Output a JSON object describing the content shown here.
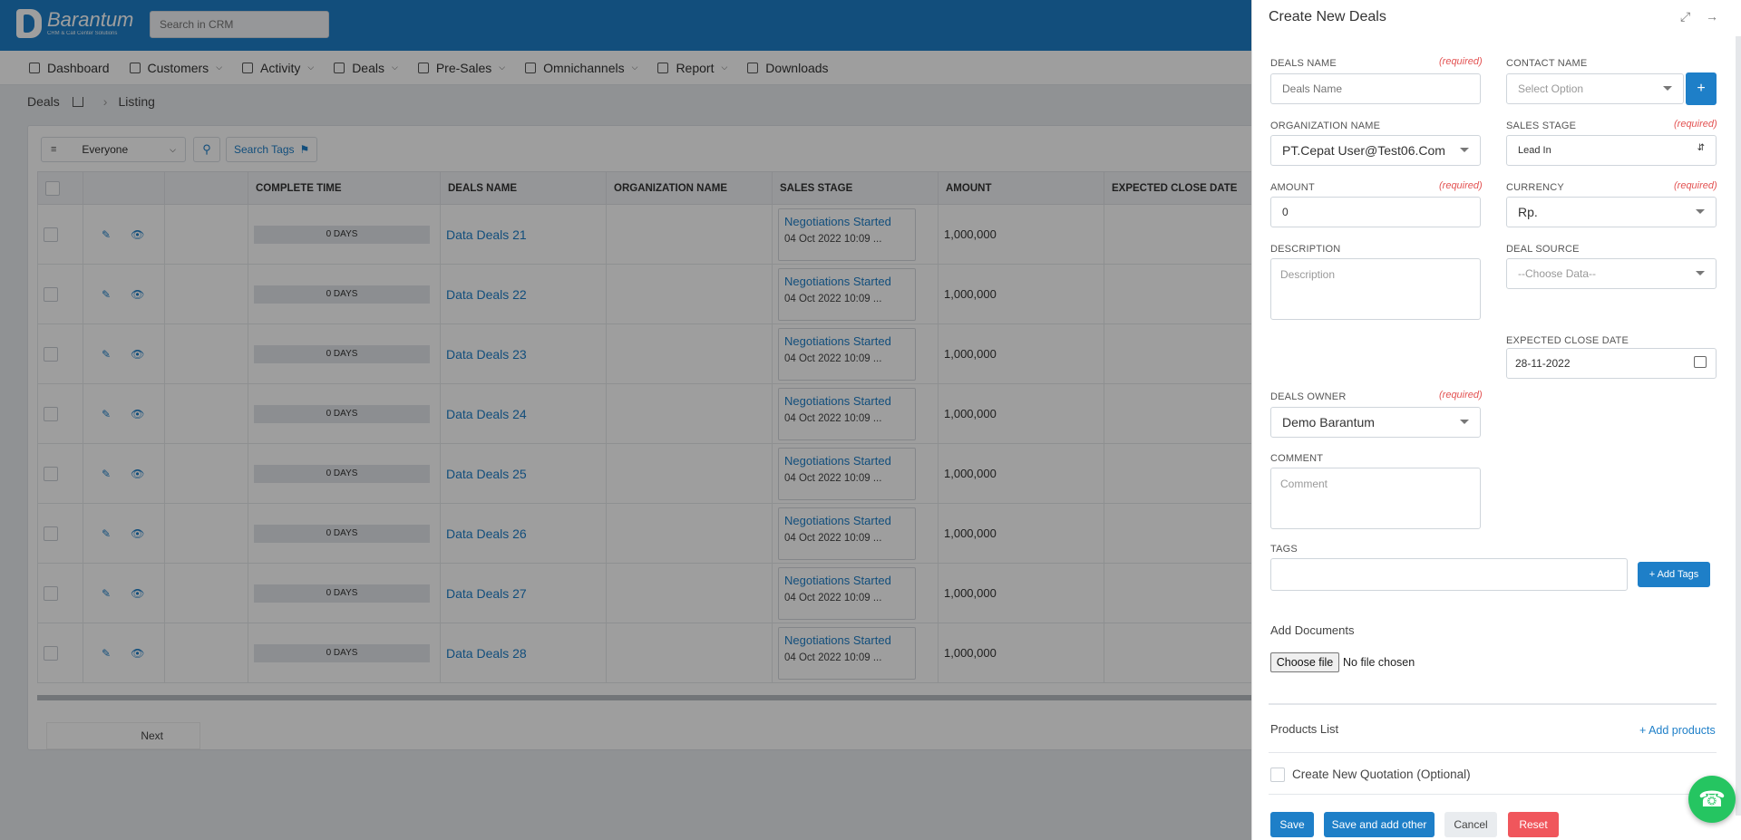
{
  "app": {
    "logo_title": "Barantum",
    "logo_sub": "CRM & Call Center Solutions",
    "search_placeholder": "Search in CRM"
  },
  "nav": [
    {
      "label": "Dashboard",
      "dropdown": false
    },
    {
      "label": "Customers",
      "dropdown": true
    },
    {
      "label": "Activity",
      "dropdown": true
    },
    {
      "label": "Deals",
      "dropdown": true
    },
    {
      "label": "Pre-Sales",
      "dropdown": true
    },
    {
      "label": "Omnichannels",
      "dropdown": true
    },
    {
      "label": "Report",
      "dropdown": true
    },
    {
      "label": "Downloads",
      "dropdown": false
    }
  ],
  "breadcrumb": {
    "section": "Deals",
    "page": "Listing"
  },
  "filters": {
    "owner": "Everyone",
    "search_tags": "Search Tags"
  },
  "table": {
    "headers": [
      "COMPLETE TIME",
      "DEALS NAME",
      "ORGANIZATION NAME",
      "SALES STAGE",
      "AMOUNT",
      "EXPECTED CLOSE DATE"
    ],
    "rows": [
      {
        "days": "0 DAYS",
        "name": "Data Deals 21",
        "stage": "Negotiations Started",
        "stage_date": "04 Oct 2022 10:09 ...",
        "amount": "1,000,000"
      },
      {
        "days": "0 DAYS",
        "name": "Data Deals 22",
        "stage": "Negotiations Started",
        "stage_date": "04 Oct 2022 10:09 ...",
        "amount": "1,000,000"
      },
      {
        "days": "0 DAYS",
        "name": "Data Deals 23",
        "stage": "Negotiations Started",
        "stage_date": "04 Oct 2022 10:09 ...",
        "amount": "1,000,000"
      },
      {
        "days": "0 DAYS",
        "name": "Data Deals 24",
        "stage": "Negotiations Started",
        "stage_date": "04 Oct 2022 10:09 ...",
        "amount": "1,000,000"
      },
      {
        "days": "0 DAYS",
        "name": "Data Deals 25",
        "stage": "Negotiations Started",
        "stage_date": "04 Oct 2022 10:09 ...",
        "amount": "1,000,000"
      },
      {
        "days": "0 DAYS",
        "name": "Data Deals 26",
        "stage": "Negotiations Started",
        "stage_date": "04 Oct 2022 10:09 ...",
        "amount": "1,000,000"
      },
      {
        "days": "0 DAYS",
        "name": "Data Deals 27",
        "stage": "Negotiations Started",
        "stage_date": "04 Oct 2022 10:09 ...",
        "amount": "1,000,000"
      },
      {
        "days": "0 DAYS",
        "name": "Data Deals 28",
        "stage": "Negotiations Started",
        "stage_date": "04 Oct 2022 10:09 ...",
        "amount": "1,000,000"
      }
    ],
    "next_label": "Next"
  },
  "drawer": {
    "title": "Create New Deals",
    "required_label": "(required)",
    "deals_name": {
      "label": "DEALS NAME",
      "placeholder": "Deals Name"
    },
    "contact_name": {
      "label": "CONTACT NAME",
      "placeholder": "Select Option",
      "add_label": "+"
    },
    "organization_name": {
      "label": "ORGANIZATION NAME",
      "value": "PT.Cepat User@Test06.Com"
    },
    "sales_stage": {
      "label": "SALES STAGE",
      "value": "Lead In"
    },
    "amount": {
      "label": "AMOUNT",
      "value": "0"
    },
    "currency": {
      "label": "CURRENCY",
      "value": "Rp."
    },
    "description": {
      "label": "DESCRIPTION",
      "placeholder": "Description"
    },
    "deal_source": {
      "label": "DEAL SOURCE",
      "placeholder": "--Choose Data--"
    },
    "expected_close_date": {
      "label": "EXPECTED CLOSE DATE",
      "value": "28-11-2022"
    },
    "deals_owner": {
      "label": "DEALS OWNER",
      "value": "Demo Barantum"
    },
    "comment": {
      "label": "COMMENT",
      "placeholder": "Comment"
    },
    "tags": {
      "label": "TAGS",
      "add_label": "+ Add Tags"
    },
    "documents": {
      "label": "Add Documents",
      "choose_label": "Choose file",
      "status": "No file chosen"
    },
    "products": {
      "label": "Products List",
      "add_label": "+ Add products"
    },
    "quotation": {
      "label": "Create New Quotation (Optional)"
    },
    "buttons": {
      "save": "Save",
      "save_add": "Save and add other",
      "cancel": "Cancel",
      "reset": "Reset"
    }
  },
  "colors": {
    "primary": "#1e7fc8",
    "danger": "#f0565c",
    "whatsapp": "#25c561"
  }
}
